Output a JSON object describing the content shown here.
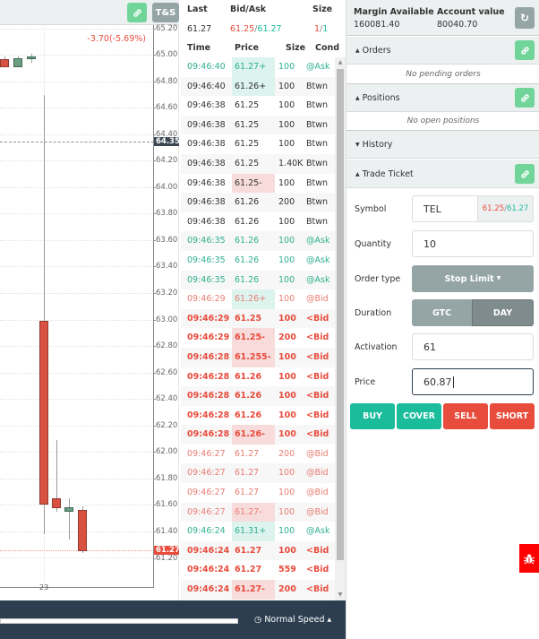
{
  "chart": {
    "toolbar": {
      "link_icon": "link-icon",
      "ts_label": "T&S"
    },
    "change_label": "-3.70(-5.69%)",
    "y_ticks": [
      "65.20",
      "65.00",
      "64.80",
      "64.60",
      "64.40",
      "64.20",
      "64.00",
      "63.80",
      "63.60",
      "63.40",
      "63.20",
      "63.00",
      "62.80",
      "62.60",
      "62.40",
      "62.20",
      "62.00",
      "61.80",
      "61.60",
      "61.40",
      "61.20"
    ],
    "marker_high": "64.35",
    "marker_last": "61.27",
    "x_tick": "23",
    "colors": {
      "down": "#d95140",
      "up": "#6a9e83"
    }
  },
  "ts": {
    "header": {
      "last_label": "Last",
      "bidask_label": "Bid/Ask",
      "size_label": "Size",
      "last_value": "61.27",
      "bid": "61.25",
      "ask": "61.27",
      "bid_size": "1",
      "ask_size": "1",
      "sep": "/"
    },
    "columns": {
      "time": "Time",
      "price": "Price",
      "size": "Size",
      "cond": "Cond"
    },
    "rows": [
      {
        "time": "09:46:40",
        "price": "61.27+",
        "size": "100",
        "cond": "@Ask",
        "type": "ask",
        "hl": "green"
      },
      {
        "time": "09:46:40",
        "price": "61.26+",
        "size": "100",
        "cond": "Btwn",
        "type": "btwn",
        "hl": "green"
      },
      {
        "time": "09:46:38",
        "price": "61.25",
        "size": "100",
        "cond": "Btwn",
        "type": "btwn",
        "hl": ""
      },
      {
        "time": "09:46:38",
        "price": "61.25",
        "size": "100",
        "cond": "Btwn",
        "type": "btwn",
        "hl": ""
      },
      {
        "time": "09:46:38",
        "price": "61.25",
        "size": "100",
        "cond": "Btwn",
        "type": "btwn",
        "hl": ""
      },
      {
        "time": "09:46:38",
        "price": "61.25",
        "size": "1.40K",
        "cond": "Btwn",
        "type": "btwn",
        "hl": ""
      },
      {
        "time": "09:46:38",
        "price": "61.25-",
        "size": "100",
        "cond": "Btwn",
        "type": "btwn",
        "hl": "red"
      },
      {
        "time": "09:46:38",
        "price": "61.26",
        "size": "200",
        "cond": "Btwn",
        "type": "btwn",
        "hl": ""
      },
      {
        "time": "09:46:38",
        "price": "61.26",
        "size": "100",
        "cond": "Btwn",
        "type": "btwn",
        "hl": ""
      },
      {
        "time": "09:46:35",
        "price": "61.26",
        "size": "100",
        "cond": "@Ask",
        "type": "ask",
        "hl": ""
      },
      {
        "time": "09:46:35",
        "price": "61.26",
        "size": "100",
        "cond": "@Ask",
        "type": "ask",
        "hl": ""
      },
      {
        "time": "09:46:35",
        "price": "61.26",
        "size": "100",
        "cond": "@Ask",
        "type": "ask",
        "hl": ""
      },
      {
        "time": "09:46:29",
        "price": "61.26+",
        "size": "100",
        "cond": "@Bid",
        "type": "atbid",
        "hl": "green"
      },
      {
        "time": "09:46:29",
        "price": "61.25",
        "size": "100",
        "cond": "<Bid",
        "type": "ltbid",
        "hl": ""
      },
      {
        "time": "09:46:29",
        "price": "61.25-",
        "size": "200",
        "cond": "<Bid",
        "type": "ltbid",
        "hl": "red"
      },
      {
        "time": "09:46:28",
        "price": "61.255-",
        "size": "100",
        "cond": "<Bid",
        "type": "ltbid",
        "hl": "red"
      },
      {
        "time": "09:46:28",
        "price": "61.26",
        "size": "100",
        "cond": "<Bid",
        "type": "ltbid",
        "hl": ""
      },
      {
        "time": "09:46:28",
        "price": "61.26",
        "size": "100",
        "cond": "<Bid",
        "type": "ltbid",
        "hl": ""
      },
      {
        "time": "09:46:28",
        "price": "61.26",
        "size": "100",
        "cond": "<Bid",
        "type": "ltbid",
        "hl": ""
      },
      {
        "time": "09:46:28",
        "price": "61.26-",
        "size": "100",
        "cond": "<Bid",
        "type": "ltbid",
        "hl": "red"
      },
      {
        "time": "09:46:27",
        "price": "61.27",
        "size": "200",
        "cond": "@Bid",
        "type": "atbid",
        "hl": ""
      },
      {
        "time": "09:46:27",
        "price": "61.27",
        "size": "100",
        "cond": "@Bid",
        "type": "atbid",
        "hl": ""
      },
      {
        "time": "09:46:27",
        "price": "61.27",
        "size": "100",
        "cond": "@Bid",
        "type": "atbid",
        "hl": ""
      },
      {
        "time": "09:46:27",
        "price": "61.27-",
        "size": "100",
        "cond": "@Bid",
        "type": "atbid",
        "hl": "red"
      },
      {
        "time": "09:46:24",
        "price": "61.31+",
        "size": "100",
        "cond": "@Ask",
        "type": "ask",
        "hl": "green"
      },
      {
        "time": "09:46:24",
        "price": "61.27",
        "size": "100",
        "cond": "<Bid",
        "type": "ltbid",
        "hl": ""
      },
      {
        "time": "09:46:24",
        "price": "61.27",
        "size": "559",
        "cond": "<Bid",
        "type": "ltbid",
        "hl": ""
      },
      {
        "time": "09:46:24",
        "price": "61.27-",
        "size": "200",
        "cond": "<Bid",
        "type": "ltbid",
        "hl": "red"
      }
    ]
  },
  "bottom_bar": {
    "speed_label": "Normal Speed",
    "speed_icon": "clock-icon"
  },
  "account": {
    "margin_label": "Margin Available",
    "margin_value": "160081.40",
    "value_label": "Account value",
    "value_value": "80040.70",
    "refresh_icon": "refresh-icon"
  },
  "sections": {
    "orders": {
      "title": "Orders",
      "empty": "No pending orders"
    },
    "positions": {
      "title": "Positions",
      "empty": "No open positions"
    },
    "history": {
      "title": "History"
    },
    "trade_ticket": {
      "title": "Trade Ticket"
    }
  },
  "ticket": {
    "symbol_label": "Symbol",
    "symbol_value": "TEL",
    "quote_bid": "61.25",
    "quote_ask": "61.27",
    "quote_sep": " / ",
    "quantity_label": "Quantity",
    "quantity_value": "10",
    "order_type_label": "Order type",
    "order_type_value": "Stop Limit",
    "duration_label": "Duration",
    "duration_options": [
      "GTC",
      "DAY"
    ],
    "duration_selected": "DAY",
    "activation_label": "Activation",
    "activation_value": "61",
    "price_label": "Price",
    "price_value": "60.87",
    "buttons": {
      "buy": "BUY",
      "cover": "COVER",
      "sell": "SELL",
      "short": "SHORT"
    }
  },
  "colors": {
    "teal": "#1abc9c",
    "red": "#e74c3c",
    "gray": "#95a5a6",
    "dark": "#2c3e50",
    "link_green": "#71d59a"
  }
}
